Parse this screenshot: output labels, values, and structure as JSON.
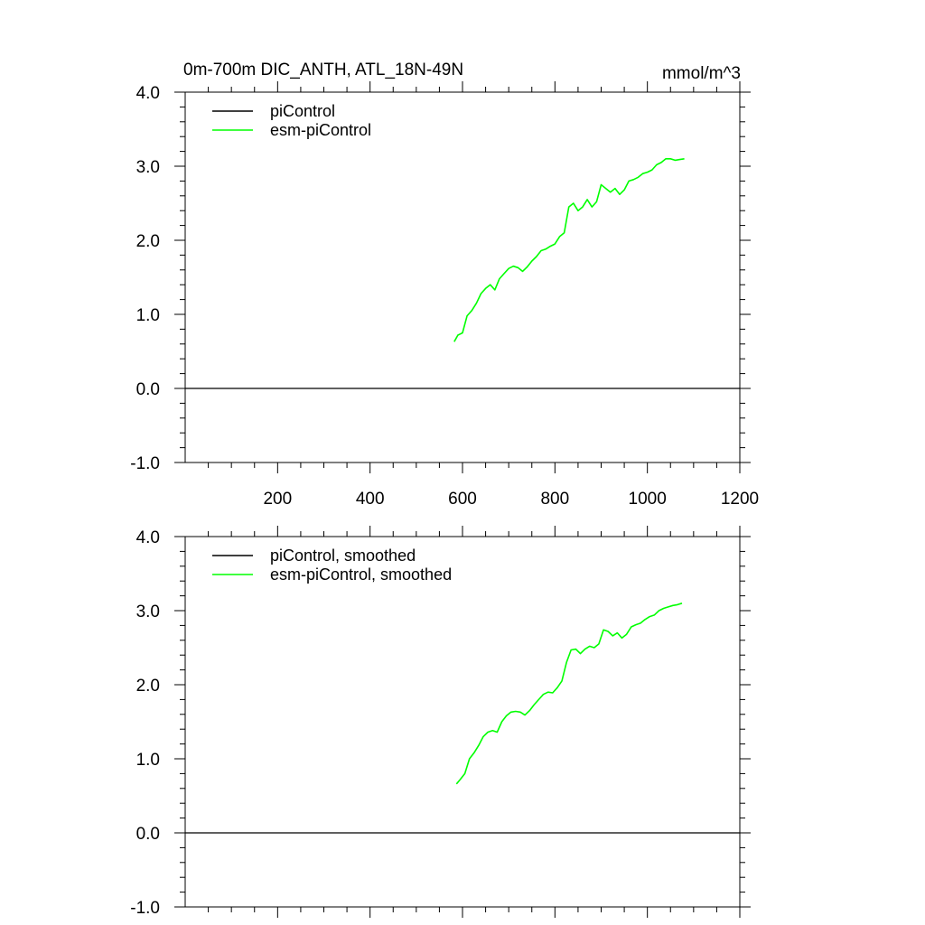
{
  "chart_data": [
    {
      "type": "line",
      "title": "0m-700m DIC_ANTH, ATL_18N-49N",
      "units": "mmol/m^3",
      "xlim": [
        0,
        1200
      ],
      "ylim": [
        -1.0,
        4.0
      ],
      "x_ticks": [
        200,
        400,
        600,
        800,
        1000,
        1200
      ],
      "x_tick_labels": [
        "200",
        "400",
        "600",
        "800",
        "1000",
        "1200"
      ],
      "y_ticks": [
        -1.0,
        0.0,
        1.0,
        2.0,
        3.0,
        4.0
      ],
      "y_tick_labels": [
        "-1.0",
        "0.0",
        "1.0",
        "2.0",
        "3.0",
        "4.0"
      ],
      "legend_position": "top-left",
      "series": [
        {
          "name": "piControl",
          "color": "#000000",
          "x": [
            0,
            1200
          ],
          "y": [
            0.0,
            0.0
          ]
        },
        {
          "name": "esm-piControl",
          "color": "#00ff00",
          "x": [
            582,
            590,
            600,
            610,
            620,
            630,
            640,
            650,
            660,
            670,
            680,
            690,
            700,
            710,
            720,
            730,
            740,
            750,
            760,
            770,
            780,
            790,
            800,
            810,
            820,
            830,
            840,
            850,
            860,
            870,
            880,
            890,
            900,
            910,
            920,
            930,
            940,
            950,
            960,
            970,
            980,
            990,
            1000,
            1010,
            1020,
            1030,
            1040,
            1050,
            1060,
            1070,
            1080
          ],
          "y": [
            0.63,
            0.72,
            0.75,
            0.98,
            1.05,
            1.15,
            1.28,
            1.35,
            1.4,
            1.33,
            1.48,
            1.55,
            1.62,
            1.65,
            1.63,
            1.58,
            1.64,
            1.72,
            1.78,
            1.86,
            1.88,
            1.92,
            1.95,
            2.05,
            2.1,
            2.45,
            2.5,
            2.4,
            2.45,
            2.55,
            2.45,
            2.52,
            2.75,
            2.7,
            2.65,
            2.7,
            2.62,
            2.68,
            2.8,
            2.82,
            2.85,
            2.9,
            2.92,
            2.95,
            3.02,
            3.05,
            3.1,
            3.1,
            3.08,
            3.09,
            3.1
          ]
        }
      ]
    },
    {
      "type": "line",
      "xlim": [
        0,
        1200
      ],
      "ylim": [
        -1.0,
        4.0
      ],
      "y_ticks": [
        -1.0,
        0.0,
        1.0,
        2.0,
        3.0,
        4.0
      ],
      "y_tick_labels": [
        "-1.0",
        "0.0",
        "1.0",
        "2.0",
        "3.0",
        "4.0"
      ],
      "legend_position": "top-left",
      "series": [
        {
          "name": "piControl, smoothed",
          "color": "#000000",
          "x": [
            0,
            1200
          ],
          "y": [
            0.0,
            0.0
          ]
        },
        {
          "name": "esm-piControl, smoothed",
          "color": "#00ff00",
          "x": [
            587,
            595,
            605,
            615,
            625,
            635,
            645,
            655,
            665,
            675,
            685,
            695,
            705,
            715,
            725,
            735,
            745,
            755,
            765,
            775,
            785,
            795,
            805,
            815,
            825,
            835,
            845,
            855,
            865,
            875,
            885,
            895,
            905,
            915,
            925,
            935,
            945,
            955,
            965,
            975,
            985,
            995,
            1005,
            1015,
            1025,
            1035,
            1045,
            1055,
            1065,
            1075
          ],
          "y": [
            0.66,
            0.72,
            0.8,
            1.0,
            1.08,
            1.18,
            1.3,
            1.36,
            1.38,
            1.36,
            1.5,
            1.58,
            1.63,
            1.64,
            1.63,
            1.59,
            1.65,
            1.73,
            1.8,
            1.87,
            1.9,
            1.89,
            1.96,
            2.05,
            2.3,
            2.47,
            2.48,
            2.42,
            2.48,
            2.52,
            2.5,
            2.55,
            2.74,
            2.72,
            2.66,
            2.7,
            2.63,
            2.68,
            2.78,
            2.81,
            2.83,
            2.88,
            2.92,
            2.94,
            3.0,
            3.03,
            3.05,
            3.07,
            3.08,
            3.1
          ]
        }
      ]
    }
  ]
}
